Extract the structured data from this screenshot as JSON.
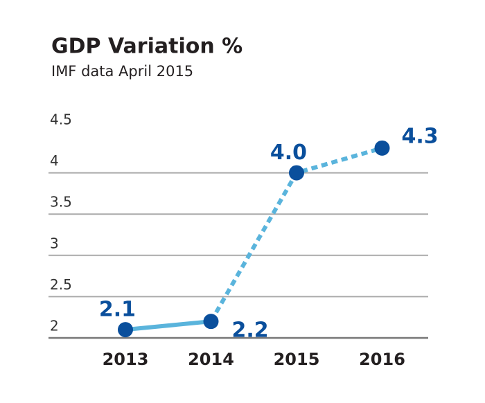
{
  "chart_data": {
    "type": "line",
    "title": "GDP Variation %",
    "subtitle": "IMF data April 2015",
    "categories": [
      "2013",
      "2014",
      "2015",
      "2016"
    ],
    "series": [
      {
        "values": [
          2.1,
          2.2,
          4.0,
          4.3
        ],
        "value_labels": [
          "2.1",
          "2.2",
          "4.0",
          "4.3"
        ],
        "color": "#5ab4dc",
        "marker_color": "#0a4f9c",
        "dashed_from_index": 1
      }
    ],
    "ylim": [
      2,
      4.5
    ],
    "yticks": [
      4.5,
      4,
      3.5,
      3,
      2.5,
      2
    ],
    "grid": true
  }
}
